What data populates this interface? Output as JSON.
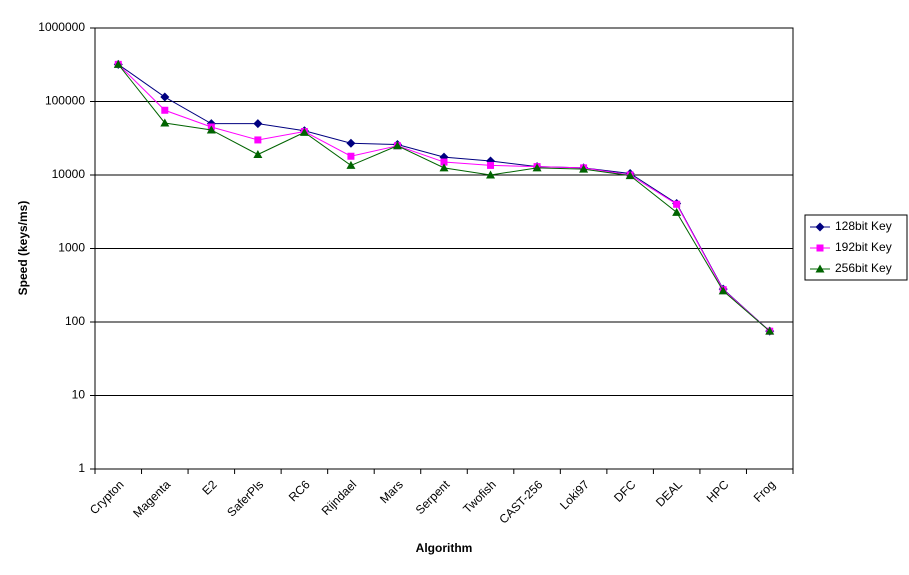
{
  "chart_data": {
    "type": "line",
    "x_label": "Algorithm",
    "y_label": "Speed (keys/ms)",
    "categories": [
      "Crypton",
      "Magenta",
      "E2",
      "SaferPls",
      "RC6",
      "Rijndael",
      "Mars",
      "Serpent",
      "Twofish",
      "CAST-256",
      "Loki97",
      "DFC",
      "DEAL",
      "HPC",
      "Frog"
    ],
    "series": [
      {
        "name": "128bit Key",
        "color": "#000080",
        "marker": "diamond",
        "values": [
          320000,
          115000,
          50000,
          50000,
          40000,
          27000,
          26000,
          17500,
          15500,
          13000,
          12500,
          10500,
          4100,
          280,
          75
        ]
      },
      {
        "name": "192bit Key",
        "color": "#ff00ff",
        "marker": "square",
        "values": [
          320000,
          76000,
          45000,
          30000,
          39000,
          18000,
          25000,
          15000,
          13500,
          13000,
          12500,
          10000,
          4000,
          275,
          75
        ]
      },
      {
        "name": "256bit Key",
        "color": "#006400",
        "marker": "triangle",
        "values": [
          320000,
          51000,
          41000,
          19000,
          38000,
          13500,
          25000,
          12500,
          10000,
          12500,
          12000,
          9800,
          3100,
          265,
          75
        ]
      }
    ],
    "log_y": true,
    "ylim": [
      1,
      1000000
    ],
    "yticks": [
      1,
      10,
      100,
      1000,
      10000,
      100000,
      1000000
    ],
    "grid": true,
    "legend": "right"
  }
}
